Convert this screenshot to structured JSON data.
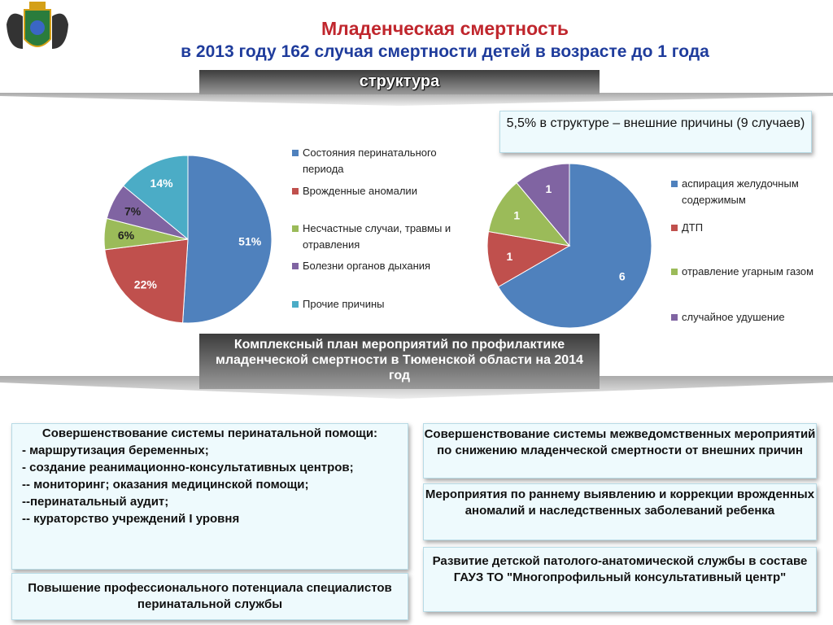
{
  "title": "Младенческая смертность",
  "subtitle": "в 2013 году 162 случая смертности детей в возрасте до 1 года",
  "banner_top": "структура",
  "note_box": "5,5% в структуре – внешние причины (9 случаев)",
  "banner_middle": "Комплексный план мероприятий по профилактике младенческой смертности в Тюменской области на 2014 год",
  "left_box": {
    "heading": "Совершенствование системы перинатальной помощи:",
    "items": [
      "- маршрутизация беременных;",
      "-  создание реанимационно-консультативных центров;",
      "-- мониторинг; оказания медицинской помощи;",
      "--перинатальный аудит;",
      "-- кураторство учреждений I уровня"
    ]
  },
  "left_bottom_box": "Повышение профессионального потенциала специалистов перинатальной службы",
  "right_boxes": [
    "Совершенствование системы межведомственных мероприятий  по снижению младенческой смертности от внешних причин",
    "Мероприятия по раннему выявлению и коррекции врожденных аномалий и наследственных заболеваний ребенка",
    "Развитие детской патолого-анатомической службы в составе ГАУЗ ТО \"Многопрофильный консультативный центр\""
  ],
  "chart_data": [
    {
      "type": "pie",
      "categories": [
        "Состояния перинатального периода",
        "Врожденные аномалии",
        "Несчастные случаи, травмы и отравления",
        "Болезни органов дыхания",
        "Прочие причины"
      ],
      "values": [
        51,
        22,
        6,
        7,
        14
      ],
      "value_labels": [
        "51%",
        "22%",
        "6%",
        "7%",
        "14%"
      ],
      "colors": [
        "#4f81bd",
        "#c0504d",
        "#9bbb59",
        "#8064a2",
        "#4bacc6"
      ]
    },
    {
      "type": "pie",
      "categories": [
        "аспирация желудочным содержимым",
        "ДТП",
        " отравление угарным газом",
        "случайное удушение"
      ],
      "values": [
        6,
        1,
        1,
        1
      ],
      "colors": [
        "#4f81bd",
        "#c0504d",
        "#9bbb59",
        "#8064a2"
      ]
    }
  ]
}
